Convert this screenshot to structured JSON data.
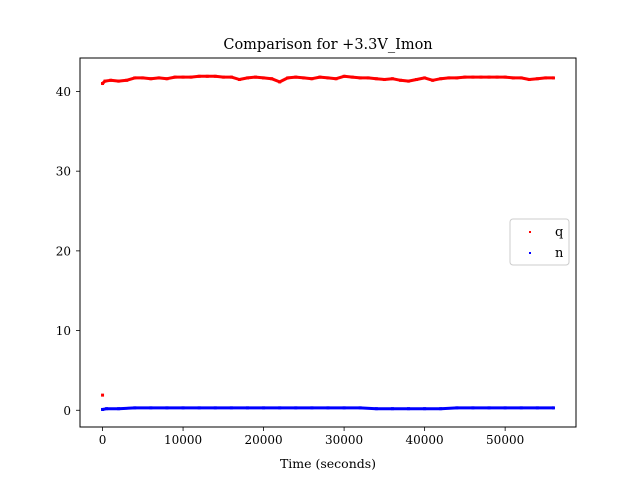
{
  "chart_data": {
    "type": "scatter",
    "title": "Comparison for +3.3V_Imon",
    "xlabel": "Time (seconds)",
    "ylabel": "",
    "xlim": [
      -2800,
      58800
    ],
    "ylim": [
      -2.1,
      44.2
    ],
    "xticks": [
      0,
      10000,
      20000,
      30000,
      40000,
      50000
    ],
    "xtick_labels": [
      "0",
      "10000",
      "20000",
      "30000",
      "40000",
      "50000"
    ],
    "yticks": [
      0,
      10,
      20,
      30,
      40
    ],
    "ytick_labels": [
      "0",
      "10",
      "20",
      "30",
      "40"
    ],
    "grid": false,
    "legend_position": "center-right",
    "series": [
      {
        "name": "q",
        "color": "#ff0000",
        "points": [
          [
            0,
            1.9
          ],
          [
            0,
            41.0
          ],
          [
            300,
            41.3
          ],
          [
            1000,
            41.4
          ],
          [
            2000,
            41.3
          ],
          [
            3000,
            41.4
          ],
          [
            4000,
            41.7
          ],
          [
            5000,
            41.7
          ],
          [
            6000,
            41.6
          ],
          [
            7000,
            41.7
          ],
          [
            8000,
            41.6
          ],
          [
            9000,
            41.8
          ],
          [
            10000,
            41.8
          ],
          [
            11000,
            41.8
          ],
          [
            12000,
            41.9
          ],
          [
            13000,
            41.9
          ],
          [
            14000,
            41.9
          ],
          [
            15000,
            41.8
          ],
          [
            16000,
            41.8
          ],
          [
            17000,
            41.5
          ],
          [
            18000,
            41.7
          ],
          [
            19000,
            41.8
          ],
          [
            20000,
            41.7
          ],
          [
            21000,
            41.6
          ],
          [
            22000,
            41.2
          ],
          [
            23000,
            41.7
          ],
          [
            24000,
            41.8
          ],
          [
            25000,
            41.7
          ],
          [
            26000,
            41.6
          ],
          [
            27000,
            41.8
          ],
          [
            28000,
            41.7
          ],
          [
            29000,
            41.6
          ],
          [
            30000,
            41.9
          ],
          [
            31000,
            41.8
          ],
          [
            32000,
            41.7
          ],
          [
            33000,
            41.7
          ],
          [
            34000,
            41.6
          ],
          [
            35000,
            41.5
          ],
          [
            36000,
            41.6
          ],
          [
            37000,
            41.4
          ],
          [
            38000,
            41.3
          ],
          [
            39000,
            41.5
          ],
          [
            40000,
            41.7
          ],
          [
            41000,
            41.4
          ],
          [
            42000,
            41.6
          ],
          [
            43000,
            41.7
          ],
          [
            44000,
            41.7
          ],
          [
            45000,
            41.8
          ],
          [
            46000,
            41.8
          ],
          [
            47000,
            41.8
          ],
          [
            48000,
            41.8
          ],
          [
            49000,
            41.8
          ],
          [
            50000,
            41.8
          ],
          [
            51000,
            41.7
          ],
          [
            52000,
            41.7
          ],
          [
            53000,
            41.5
          ],
          [
            54000,
            41.6
          ],
          [
            55000,
            41.7
          ],
          [
            56000,
            41.7
          ]
        ]
      },
      {
        "name": "n",
        "color": "#0000ff",
        "points": [
          [
            0,
            0.1
          ],
          [
            500,
            0.2
          ],
          [
            2000,
            0.2
          ],
          [
            4000,
            0.3
          ],
          [
            6000,
            0.3
          ],
          [
            8000,
            0.3
          ],
          [
            10000,
            0.3
          ],
          [
            12000,
            0.3
          ],
          [
            14000,
            0.3
          ],
          [
            16000,
            0.3
          ],
          [
            18000,
            0.3
          ],
          [
            20000,
            0.3
          ],
          [
            22000,
            0.3
          ],
          [
            24000,
            0.3
          ],
          [
            26000,
            0.3
          ],
          [
            28000,
            0.3
          ],
          [
            30000,
            0.3
          ],
          [
            32000,
            0.3
          ],
          [
            34000,
            0.2
          ],
          [
            36000,
            0.2
          ],
          [
            38000,
            0.2
          ],
          [
            40000,
            0.2
          ],
          [
            42000,
            0.2
          ],
          [
            44000,
            0.3
          ],
          [
            46000,
            0.3
          ],
          [
            48000,
            0.3
          ],
          [
            50000,
            0.3
          ],
          [
            52000,
            0.3
          ],
          [
            54000,
            0.3
          ],
          [
            56000,
            0.3
          ]
        ]
      }
    ]
  }
}
